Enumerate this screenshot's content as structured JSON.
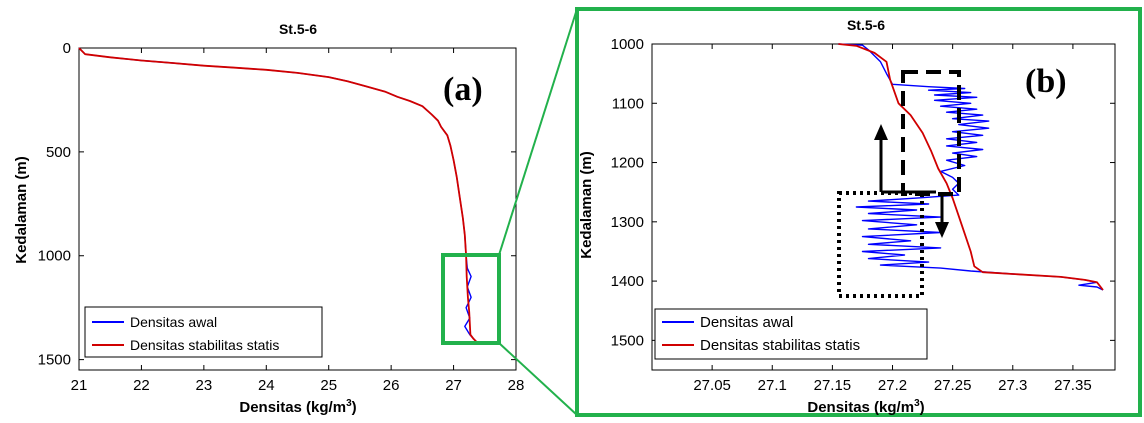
{
  "chart_data": [
    {
      "type": "line",
      "panel_label": "(a)",
      "title": "St.5-6",
      "xlabel": "Densitas (kg/m",
      "xlabel_sup": "3",
      "xlabel_end": ")",
      "ylabel": "Kedalaman (m)",
      "xlim": [
        21,
        28
      ],
      "ylim": [
        0,
        1550
      ],
      "y_reversed": true,
      "xticks": [
        "21",
        "22",
        "23",
        "24",
        "25",
        "26",
        "27",
        "28"
      ],
      "yticks": [
        "0",
        "500",
        "1000",
        "1500"
      ],
      "legend_position": "bottom-left",
      "series": [
        {
          "name": "Densitas awal",
          "color": "#0000ff",
          "points": [
            [
              21.0,
              0
            ],
            [
              21.1,
              30
            ],
            [
              21.5,
              45
            ],
            [
              22.0,
              60
            ],
            [
              22.5,
              72
            ],
            [
              23.0,
              85
            ],
            [
              23.5,
              95
            ],
            [
              24.0,
              105
            ],
            [
              24.5,
              120
            ],
            [
              25.0,
              140
            ],
            [
              25.3,
              160
            ],
            [
              25.6,
              185
            ],
            [
              25.9,
              210
            ],
            [
              26.1,
              235
            ],
            [
              26.3,
              255
            ],
            [
              26.5,
              280
            ],
            [
              26.65,
              320
            ],
            [
              26.75,
              350
            ],
            [
              26.8,
              380
            ],
            [
              26.9,
              420
            ],
            [
              26.95,
              470
            ],
            [
              27.0,
              540
            ],
            [
              27.05,
              620
            ],
            [
              27.1,
              720
            ],
            [
              27.15,
              820
            ],
            [
              27.18,
              900
            ],
            [
              27.2,
              1000
            ],
            [
              27.22,
              1060
            ],
            [
              27.28,
              1100
            ],
            [
              27.22,
              1150
            ],
            [
              27.28,
              1200
            ],
            [
              27.2,
              1250
            ],
            [
              27.26,
              1300
            ],
            [
              27.18,
              1340
            ],
            [
              27.26,
              1380
            ],
            [
              27.32,
              1400
            ],
            [
              27.37,
              1415
            ]
          ]
        },
        {
          "name": "Densitas stabilitas statis",
          "color": "#d00000",
          "points": [
            [
              21.0,
              0
            ],
            [
              21.1,
              30
            ],
            [
              21.5,
              45
            ],
            [
              22.0,
              60
            ],
            [
              22.5,
              72
            ],
            [
              23.0,
              85
            ],
            [
              23.5,
              95
            ],
            [
              24.0,
              105
            ],
            [
              24.5,
              120
            ],
            [
              25.0,
              140
            ],
            [
              25.3,
              160
            ],
            [
              25.6,
              185
            ],
            [
              25.9,
              210
            ],
            [
              26.1,
              235
            ],
            [
              26.3,
              255
            ],
            [
              26.5,
              280
            ],
            [
              26.65,
              320
            ],
            [
              26.75,
              350
            ],
            [
              26.8,
              380
            ],
            [
              26.9,
              420
            ],
            [
              26.95,
              470
            ],
            [
              27.0,
              540
            ],
            [
              27.05,
              620
            ],
            [
              27.1,
              720
            ],
            [
              27.15,
              820
            ],
            [
              27.18,
              900
            ],
            [
              27.2,
              1000
            ],
            [
              27.21,
              1100
            ],
            [
              27.23,
              1200
            ],
            [
              27.25,
              1270
            ],
            [
              27.27,
              1380
            ],
            [
              27.32,
              1400
            ],
            [
              27.37,
              1415
            ]
          ]
        }
      ]
    },
    {
      "type": "line",
      "panel_label": "(b)",
      "title": "St.5-6",
      "xlabel": "Densitas (kg/m",
      "xlabel_sup": "3",
      "xlabel_end": ")",
      "ylabel": "Kedalaman (m)",
      "xlim": [
        27.0,
        27.385
      ],
      "ylim": [
        1000,
        1550
      ],
      "y_reversed": true,
      "xticks": [
        "27.05",
        "27.1",
        "27.15",
        "27.2",
        "27.25",
        "27.3",
        "27.35"
      ],
      "xtick_values": [
        27.05,
        27.1,
        27.15,
        27.2,
        27.25,
        27.3,
        27.35
      ],
      "yticks": [
        "1000",
        "1100",
        "1200",
        "1300",
        "1400",
        "1500"
      ],
      "legend_position": "bottom-left",
      "series": [
        {
          "name": "Densitas awal",
          "color": "#0000ff",
          "points": [
            [
              27.155,
              1000
            ],
            [
              27.175,
              1002
            ],
            [
              27.18,
              1010
            ],
            [
              27.19,
              1030
            ],
            [
              27.195,
              1050
            ],
            [
              27.2,
              1068
            ],
            [
              27.23,
              1072
            ],
            [
              27.26,
              1075
            ],
            [
              27.23,
              1078
            ],
            [
              27.265,
              1082
            ],
            [
              27.235,
              1086
            ],
            [
              27.27,
              1090
            ],
            [
              27.235,
              1095
            ],
            [
              27.265,
              1100
            ],
            [
              27.24,
              1105
            ],
            [
              27.27,
              1110
            ],
            [
              27.245,
              1115
            ],
            [
              27.275,
              1120
            ],
            [
              27.25,
              1126
            ],
            [
              27.28,
              1130
            ],
            [
              27.255,
              1136
            ],
            [
              27.28,
              1142
            ],
            [
              27.25,
              1148
            ],
            [
              27.275,
              1154
            ],
            [
              27.245,
              1160
            ],
            [
              27.27,
              1166
            ],
            [
              27.245,
              1172
            ],
            [
              27.275,
              1178
            ],
            [
              27.25,
              1184
            ],
            [
              27.27,
              1190
            ],
            [
              27.245,
              1196
            ],
            [
              27.26,
              1205
            ],
            [
              27.24,
              1215
            ],
            [
              27.25,
              1225
            ],
            [
              27.255,
              1235
            ],
            [
              27.25,
              1245
            ],
            [
              27.255,
              1255
            ],
            [
              27.22,
              1260
            ],
            [
              27.18,
              1265
            ],
            [
              27.23,
              1270
            ],
            [
              27.17,
              1275
            ],
            [
              27.22,
              1280
            ],
            [
              27.18,
              1286
            ],
            [
              27.24,
              1292
            ],
            [
              27.175,
              1298
            ],
            [
              27.22,
              1305
            ],
            [
              27.18,
              1312
            ],
            [
              27.24,
              1318
            ],
            [
              27.175,
              1325
            ],
            [
              27.215,
              1332
            ],
            [
              27.18,
              1338
            ],
            [
              27.24,
              1344
            ],
            [
              27.175,
              1350
            ],
            [
              27.21,
              1356
            ],
            [
              27.18,
              1362
            ],
            [
              27.23,
              1368
            ],
            [
              27.19,
              1373
            ],
            [
              27.24,
              1378
            ],
            [
              27.265,
              1383
            ],
            [
              27.3,
              1388
            ],
            [
              27.34,
              1393
            ],
            [
              27.36,
              1398
            ],
            [
              27.37,
              1402
            ],
            [
              27.355,
              1407
            ],
            [
              27.37,
              1410
            ],
            [
              27.375,
              1415
            ]
          ]
        },
        {
          "name": "Densitas stabilitas statis",
          "color": "#d00000",
          "points": [
            [
              27.155,
              1000
            ],
            [
              27.17,
              1003
            ],
            [
              27.185,
              1015
            ],
            [
              27.195,
              1030
            ],
            [
              27.198,
              1060
            ],
            [
              27.205,
              1100
            ],
            [
              27.215,
              1120
            ],
            [
              27.225,
              1150
            ],
            [
              27.232,
              1180
            ],
            [
              27.238,
              1210
            ],
            [
              27.245,
              1235
            ],
            [
              27.25,
              1260
            ],
            [
              27.255,
              1290
            ],
            [
              27.26,
              1320
            ],
            [
              27.265,
              1350
            ],
            [
              27.268,
              1375
            ],
            [
              27.275,
              1385
            ],
            [
              27.3,
              1388
            ],
            [
              27.34,
              1393
            ],
            [
              27.36,
              1398
            ],
            [
              27.37,
              1402
            ],
            [
              27.375,
              1415
            ]
          ]
        }
      ]
    }
  ]
}
